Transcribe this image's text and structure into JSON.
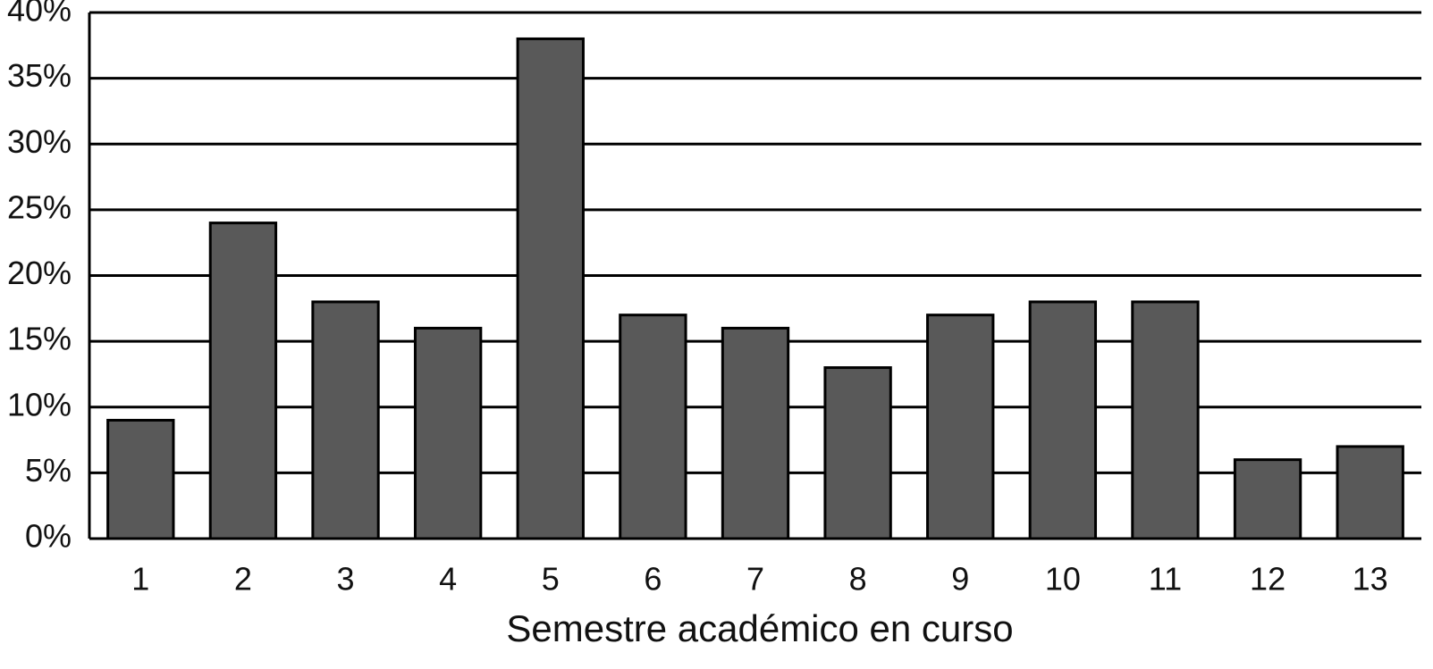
{
  "chart_data": {
    "type": "bar",
    "x_label": "Semestre académico en curso",
    "categories": [
      "1",
      "2",
      "3",
      "4",
      "5",
      "6",
      "7",
      "8",
      "9",
      "10",
      "11",
      "12",
      "13"
    ],
    "values": [
      9,
      24,
      18,
      16,
      38,
      17,
      16,
      13,
      17,
      18,
      18,
      6,
      7
    ],
    "color": "#595959",
    "ylim": [
      0,
      40
    ],
    "yticks": [
      {
        "value": 0,
        "label": "0%"
      },
      {
        "value": 5,
        "label": "5%"
      },
      {
        "value": 10,
        "label": "10%"
      },
      {
        "value": 15,
        "label": "15%"
      },
      {
        "value": 20,
        "label": "20%"
      },
      {
        "value": 25,
        "label": "25%"
      },
      {
        "value": 30,
        "label": "30%"
      },
      {
        "value": 35,
        "label": "35%"
      },
      {
        "value": 40,
        "label": "40%"
      }
    ],
    "grid": true
  }
}
